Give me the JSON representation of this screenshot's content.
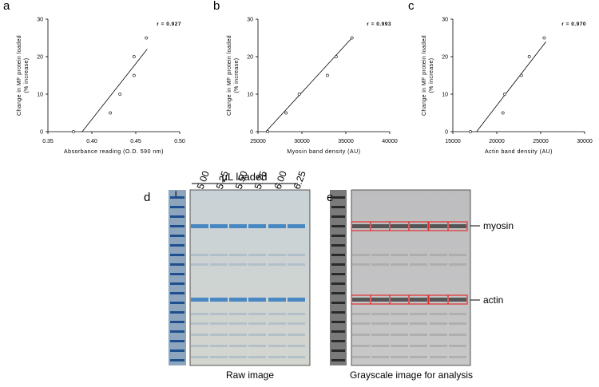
{
  "chart_data": [
    {
      "type": "scatter",
      "panel_label": "a",
      "x_label": "Absorbance reading (O.D. 590 nm)",
      "y_label": [
        "Change in MF protein loaded",
        "(% increase)"
      ],
      "annotation": "r = 0.927",
      "x": [
        0.379,
        0.421,
        0.432,
        0.448,
        0.448,
        0.462
      ],
      "values": [
        0,
        5,
        10,
        15,
        20,
        25
      ],
      "color": "#000000",
      "xlim": [
        0.35,
        0.5
      ],
      "xticks": [
        0.35,
        {
          "value": 0.4,
          "label": "0.40"
        },
        0.45,
        {
          "value": 0.5,
          "label": "0.50"
        }
      ],
      "ylim": [
        0,
        30
      ],
      "yticks": [
        0,
        10,
        20,
        30
      ],
      "trendline": {
        "x": [
          0.389,
          0.463
        ],
        "y": [
          0,
          22
        ]
      }
    },
    {
      "type": "scatter",
      "panel_label": "b",
      "x_label": "Myosin band density (AU)",
      "y_label": [
        "Change in MF protein loaded",
        "(% increase)"
      ],
      "annotation": "r = 0.993",
      "x": [
        26100,
        28200,
        29700,
        32900,
        33900,
        35700
      ],
      "values": [
        0,
        5,
        10,
        15,
        20,
        25
      ],
      "color": "#000000",
      "xlim": [
        25000,
        40000
      ],
      "xticks": [
        25000,
        30000,
        35000,
        40000
      ],
      "ylim": [
        0,
        30
      ],
      "yticks": [
        0,
        10,
        20,
        30
      ],
      "trendline": {
        "x": [
          25900,
          35700
        ],
        "y": [
          0,
          25
        ]
      }
    },
    {
      "type": "scatter",
      "panel_label": "c",
      "x_label": "Actin band density (AU)",
      "y_label": [
        "Change in MF protein loaded",
        "(% increase)"
      ],
      "annotation": "r = 0.970",
      "x": [
        17000,
        20700,
        20900,
        22800,
        23700,
        25400
      ],
      "values": [
        0,
        5,
        10,
        15,
        20,
        25
      ],
      "color": "#000000",
      "xlim": [
        15000,
        30000
      ],
      "xticks": [
        15000,
        20000,
        25000,
        30000
      ],
      "ylim": [
        0,
        30
      ],
      "yticks": [
        0,
        10,
        20,
        30
      ],
      "trendline": {
        "x": [
          17700,
          25600
        ],
        "y": [
          0,
          24
        ]
      }
    }
  ],
  "gel": {
    "panel_d": "d",
    "panel_e": "e",
    "ladder": "L",
    "loaded_label": "µL loaded",
    "lanes": [
      "5.00",
      "5.25",
      "5.50",
      "5.75",
      "6.00",
      "6.25"
    ],
    "myosin": "myosin",
    "actin": "actin",
    "raw_caption": "Raw image",
    "gray_caption": "Grayscale image for analysis"
  }
}
